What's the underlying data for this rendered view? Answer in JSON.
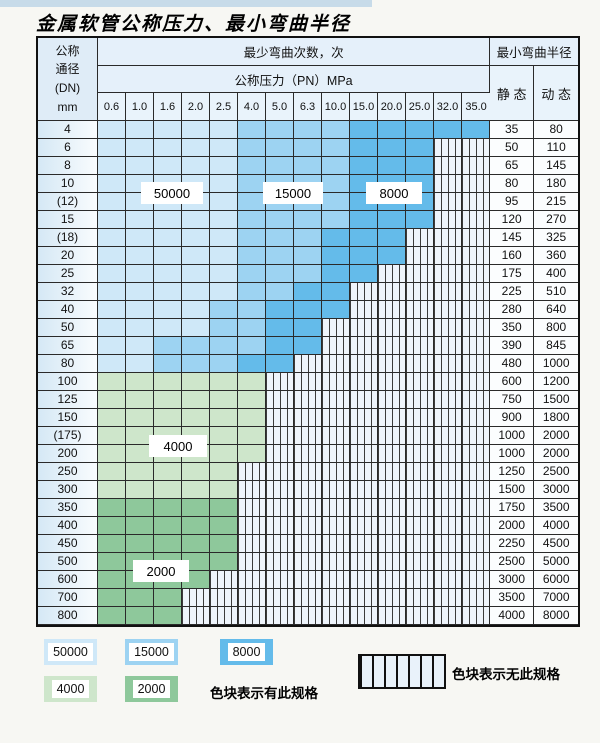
{
  "title": "金属软管公称压力、最小弯曲半径",
  "colors": {
    "bands": {
      "L": "#cfe8f8",
      "M": "#9dd3f2",
      "D": "#64bbea",
      "G": "#cee6cb",
      "E": "#8ec89b"
    },
    "hatch_bg": "#eef4fb",
    "hatch_line": "#3b3b3b",
    "grid_line": "#2a2a2a",
    "header_bg": "#e5f0fa"
  },
  "table": {
    "corner": {
      "l1": "公称",
      "l2": "通径",
      "l3": "(DN)",
      "l4": "mm"
    },
    "bend_cycles_header": "最少弯曲次数，次",
    "pressure_header": "公称压力（PN）MPa",
    "radius_header": "最小弯曲半径",
    "static_header": "静 态",
    "dynamic_header": "动 态",
    "pressure_columns": [
      "0.6",
      "1.0",
      "1.6",
      "2.0",
      "2.5",
      "4.0",
      "5.0",
      "6.3",
      "10.0",
      "15.0",
      "20.0",
      "25.0",
      "32.0",
      "35.0"
    ],
    "band_legend_meaning": {
      "L": "50000",
      "M": "15000",
      "D": "8000",
      "G": "4000",
      "E": "2000",
      "H": "无此规格"
    },
    "rows": [
      {
        "dn": "4",
        "cells": "LLLLLMMMMDDDDD",
        "static": "35",
        "dynamic": "80"
      },
      {
        "dn": "6",
        "cells": "LLLLLMMMMDDDHH",
        "static": "50",
        "dynamic": "110"
      },
      {
        "dn": "8",
        "cells": "LLLLLMMMMDDDHH",
        "static": "65",
        "dynamic": "145"
      },
      {
        "dn": "10",
        "cells": "LLLLLMMMMDDDHH",
        "static": "80",
        "dynamic": "180"
      },
      {
        "dn": "(12)",
        "cells": "LLLLLMMMMDDDHH",
        "static": "95",
        "dynamic": "215"
      },
      {
        "dn": "15",
        "cells": "LLLLLMMMMDDDHH",
        "static": "120",
        "dynamic": "270"
      },
      {
        "dn": "(18)",
        "cells": "LLLLLMMMDDDHHH",
        "static": "145",
        "dynamic": "325"
      },
      {
        "dn": "20",
        "cells": "LLLLLMMMDDDHHH",
        "static": "160",
        "dynamic": "360"
      },
      {
        "dn": "25",
        "cells": "LLLLLMMMDDHHHH",
        "static": "175",
        "dynamic": "400"
      },
      {
        "dn": "32",
        "cells": "LLLLLMMDDHHHHH",
        "static": "225",
        "dynamic": "510"
      },
      {
        "dn": "40",
        "cells": "LLLLMMDDDHHHHH",
        "static": "280",
        "dynamic": "640"
      },
      {
        "dn": "50",
        "cells": "LLLLMMDDHHHHHH",
        "static": "350",
        "dynamic": "800"
      },
      {
        "dn": "65",
        "cells": "LLMMMMDDHHHHHH",
        "static": "390",
        "dynamic": "845"
      },
      {
        "dn": "80",
        "cells": "LLMMMDDHHHHHHH",
        "static": "480",
        "dynamic": "1000"
      },
      {
        "dn": "100",
        "cells": "GGGGGGHHHHHHHH",
        "static": "600",
        "dynamic": "1200"
      },
      {
        "dn": "125",
        "cells": "GGGGGGHHHHHHHH",
        "static": "750",
        "dynamic": "1500"
      },
      {
        "dn": "150",
        "cells": "GGGGGGHHHHHHHH",
        "static": "900",
        "dynamic": "1800"
      },
      {
        "dn": "(175)",
        "cells": "GGGGGGHHHHHHHH",
        "static": "1000",
        "dynamic": "2000"
      },
      {
        "dn": "200",
        "cells": "GGGGGGHHHHHHHH",
        "static": "1000",
        "dynamic": "2000"
      },
      {
        "dn": "250",
        "cells": "GGGGGHHHHHHHHH",
        "static": "1250",
        "dynamic": "2500"
      },
      {
        "dn": "300",
        "cells": "GGGGGHHHHHHHHH",
        "static": "1500",
        "dynamic": "3000"
      },
      {
        "dn": "350",
        "cells": "EEEEEHHHHHHHHH",
        "static": "1750",
        "dynamic": "3500"
      },
      {
        "dn": "400",
        "cells": "EEEEEHHHHHHHHH",
        "static": "2000",
        "dynamic": "4000"
      },
      {
        "dn": "450",
        "cells": "EEEEEHHHHHHHHH",
        "static": "2250",
        "dynamic": "4500"
      },
      {
        "dn": "500",
        "cells": "EEEEEHHHHHHHHH",
        "static": "2500",
        "dynamic": "5000"
      },
      {
        "dn": "600",
        "cells": "EEEEHHHHHHHHHH",
        "static": "3000",
        "dynamic": "6000"
      },
      {
        "dn": "700",
        "cells": "EEEHHHHHHHHHHH",
        "static": "3500",
        "dynamic": "7000"
      },
      {
        "dn": "800",
        "cells": "EEEHHHHHHHHHHH",
        "static": "4000",
        "dynamic": "8000"
      }
    ]
  },
  "overlays": [
    {
      "text": "50000"
    },
    {
      "text": "15000"
    },
    {
      "text": "8000"
    },
    {
      "text": "4000"
    },
    {
      "text": "2000"
    }
  ],
  "legend": {
    "items": [
      {
        "label": "50000",
        "band": "L"
      },
      {
        "label": "15000",
        "band": "M"
      },
      {
        "label": "8000",
        "band": "D"
      },
      {
        "label": "4000",
        "band": "G"
      },
      {
        "label": "2000",
        "band": "E"
      }
    ],
    "available_note": "色块表示有此规格",
    "unavailable_note": "色块表示无此规格"
  }
}
